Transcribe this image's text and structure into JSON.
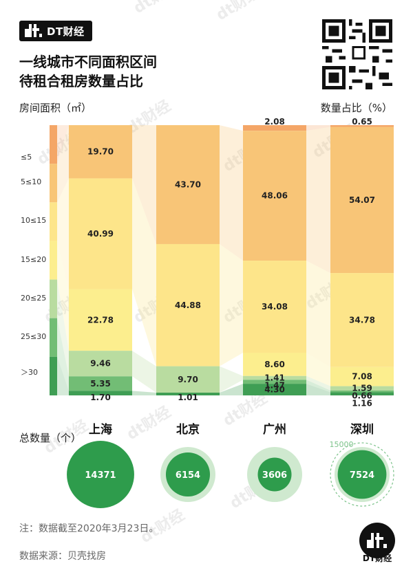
{
  "brand": {
    "name": "DT财经"
  },
  "title_lines": [
    "一线城市不同面积区间",
    "待租合租房数量占比"
  ],
  "axis": {
    "left_label": "房间面积（㎡）",
    "right_label": "数量占比（%）"
  },
  "total_label": "总数量（个）",
  "note": "注：数据截至2020年3月23日。",
  "source": "数据来源：贝壳找房",
  "watermark": "dt财经",
  "colors": {
    "c1": "#f4a667",
    "c2": "#f8c577",
    "c3": "#fde58a",
    "c4": "#fcee8e",
    "c5": "#b9dca0",
    "c6": "#72bd75",
    "c7": "#3f9e54",
    "bubble_inner": "#2e9c4c",
    "bubble_outer": "#cfe9cf"
  },
  "chart_data": {
    "type": "bar",
    "stacked": true,
    "percent": true,
    "categories": [
      "≤5",
      "5≤10",
      "10≤15",
      "15≤20",
      "20≤25",
      "25≤30",
      "＞30"
    ],
    "cities": [
      {
        "name": "上海",
        "total": 14371,
        "values": [
          19.7,
          40.99,
          22.78,
          9.46,
          5.35,
          1.7
        ],
        "labels": [
          "19.70",
          "40.99",
          "22.78",
          "9.46",
          "5.35",
          "1.70"
        ]
      },
      {
        "name": "北京",
        "total": 6154,
        "values": [
          43.7,
          44.88,
          9.7,
          1.01
        ],
        "labels": [
          "43.70",
          "44.88",
          "9.70",
          "1.01"
        ]
      },
      {
        "name": "广州",
        "total": 3606,
        "values": [
          2.08,
          48.06,
          34.08,
          8.6,
          1.41,
          1.47,
          4.3
        ],
        "labels": [
          "2.08",
          "48.06",
          "34.08",
          "8.60",
          "1.41",
          "1.47",
          "4.30"
        ]
      },
      {
        "name": "深圳",
        "total": 7524,
        "values": [
          0.65,
          54.07,
          34.78,
          7.08,
          1.59,
          0.66,
          1.16
        ],
        "labels": [
          "0.65",
          "54.07",
          "34.78",
          "7.08",
          "1.59",
          "0.66",
          "1.16"
        ]
      }
    ],
    "reference_circle": {
      "value": 15000,
      "label": "15000"
    }
  }
}
